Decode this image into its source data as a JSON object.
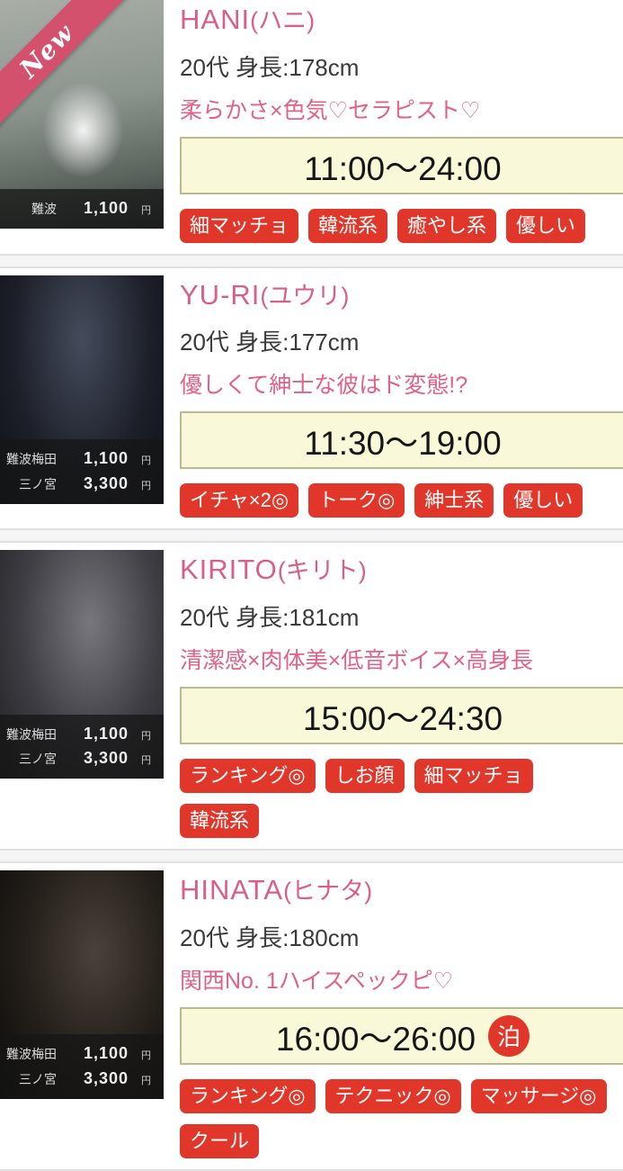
{
  "colors": {
    "accent_pink": "#d95f87",
    "tag_red": "#e0372a",
    "time_box_bg": "#f9f9da",
    "time_box_border": "#b9ba90",
    "ribbon_pink": "#d4516e"
  },
  "new_ribbon_label": "New",
  "cards": [
    {
      "name": "HANI",
      "kana": "(ハニ)",
      "profile": "20代 身長:178cm",
      "catchphrase": "柔らかさ×色気♡セラピスト♡",
      "schedule": "11:00〜24:00",
      "overnight_badge": "",
      "is_new": true,
      "tags": [
        "細マッチョ",
        "韓流系",
        "癒やし系",
        "優しい"
      ],
      "prices": [
        {
          "area": "難波",
          "price": "1,100",
          "unit": "円"
        }
      ]
    },
    {
      "name": "YU-RI",
      "kana": "(ユウリ)",
      "profile": "20代 身長:177cm",
      "catchphrase": "優しくて紳士な彼はド変態!?",
      "schedule": "11:30〜19:00",
      "overnight_badge": "",
      "is_new": false,
      "tags": [
        "イチャ×2◎",
        "トーク◎",
        "紳士系",
        "優しい"
      ],
      "prices": [
        {
          "area": "難波梅田",
          "price": "1,100",
          "unit": "円"
        },
        {
          "area": "三ノ宮",
          "price": "3,300",
          "unit": "円"
        }
      ]
    },
    {
      "name": "KIRITO",
      "kana": "(キリト)",
      "profile": "20代 身長:181cm",
      "catchphrase": "清潔感×肉体美×低音ボイス×高身長",
      "schedule": "15:00〜24:30",
      "overnight_badge": "",
      "is_new": false,
      "tags": [
        "ランキング◎",
        "しお顔",
        "細マッチョ",
        "韓流系"
      ],
      "prices": [
        {
          "area": "難波梅田",
          "price": "1,100",
          "unit": "円"
        },
        {
          "area": "三ノ宮",
          "price": "3,300",
          "unit": "円"
        }
      ]
    },
    {
      "name": "HINATA",
      "kana": "(ヒナタ)",
      "profile": "20代 身長:180cm",
      "catchphrase": "関西No. 1ハイスペックピ♡",
      "schedule": "16:00〜26:00",
      "overnight_badge": "泊",
      "is_new": false,
      "tags": [
        "ランキング◎",
        "テクニック◎",
        "マッサージ◎",
        "クール"
      ],
      "prices": [
        {
          "area": "難波梅田",
          "price": "1,100",
          "unit": "円"
        },
        {
          "area": "三ノ宮",
          "price": "3,300",
          "unit": "円"
        }
      ]
    }
  ]
}
